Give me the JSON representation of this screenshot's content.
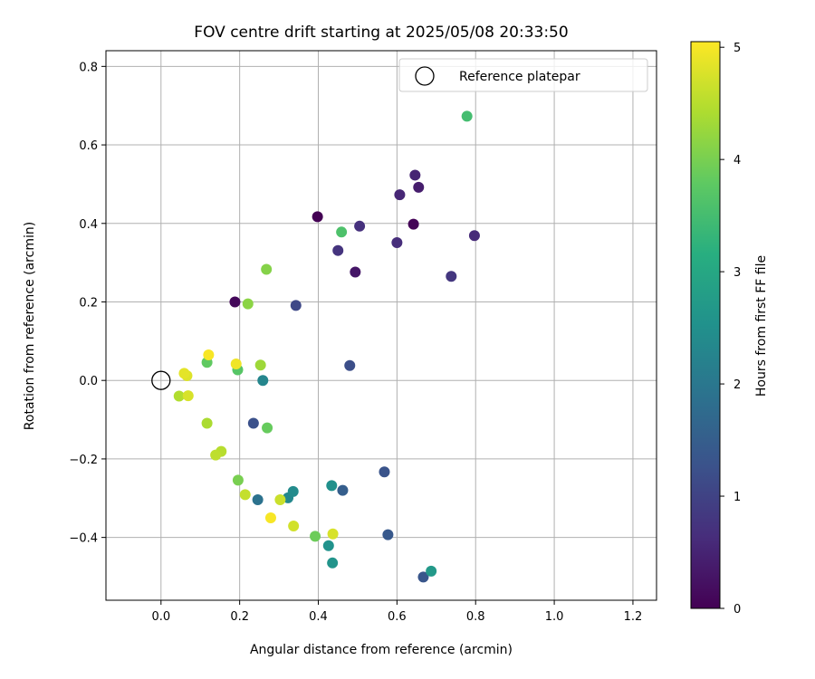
{
  "chart_data": {
    "type": "scatter",
    "title": "FOV centre drift starting at 2025/05/08 20:33:50",
    "xlabel": "Angular distance from reference (arcmin)",
    "ylabel": "Rotation from reference (arcmin)",
    "xlim": [
      -0.14,
      1.26
    ],
    "ylim": [
      -0.56,
      0.84
    ],
    "xticks": [
      0.0,
      0.2,
      0.4,
      0.6,
      0.8,
      1.0,
      1.2
    ],
    "xtick_labels": [
      "0.0",
      "0.2",
      "0.4",
      "0.6",
      "0.8",
      "1.0",
      "1.2"
    ],
    "yticks": [
      -0.4,
      -0.2,
      0.0,
      0.2,
      0.4,
      0.6,
      0.8
    ],
    "ytick_labels": [
      "−0.4",
      "−0.2",
      "0.0",
      "0.2",
      "0.4",
      "0.6",
      "0.8"
    ],
    "grid": true,
    "legend": {
      "position": "top-right",
      "entries": [
        "Reference platepar"
      ]
    },
    "reference_point": {
      "x": 0.0,
      "y": 0.0
    },
    "colorbar": {
      "label": "Hours from first FF file",
      "colormap": "viridis",
      "range": [
        0,
        5.05
      ],
      "ticks": [
        0,
        1,
        2,
        3,
        4,
        5
      ],
      "tick_labels": [
        "0",
        "1",
        "2",
        "3",
        "4",
        "5"
      ]
    },
    "points": [
      {
        "x": 0.398,
        "y": 0.417,
        "c": 0.0
      },
      {
        "x": 0.642,
        "y": 0.398,
        "c": 0.05
      },
      {
        "x": 0.188,
        "y": 0.2,
        "c": 0.1
      },
      {
        "x": 0.494,
        "y": 0.276,
        "c": 0.3
      },
      {
        "x": 0.655,
        "y": 0.492,
        "c": 0.4
      },
      {
        "x": 0.646,
        "y": 0.523,
        "c": 0.5
      },
      {
        "x": 0.607,
        "y": 0.473,
        "c": 0.55
      },
      {
        "x": 0.797,
        "y": 0.369,
        "c": 0.6
      },
      {
        "x": 0.6,
        "y": 0.351,
        "c": 0.65
      },
      {
        "x": 0.505,
        "y": 0.393,
        "c": 0.7
      },
      {
        "x": 0.45,
        "y": 0.331,
        "c": 0.75
      },
      {
        "x": 0.738,
        "y": 0.265,
        "c": 0.8
      },
      {
        "x": 0.343,
        "y": 0.191,
        "c": 1.1
      },
      {
        "x": 0.48,
        "y": 0.038,
        "c": 1.2
      },
      {
        "x": 0.235,
        "y": -0.109,
        "c": 1.25
      },
      {
        "x": 0.568,
        "y": -0.233,
        "c": 1.3
      },
      {
        "x": 0.667,
        "y": -0.501,
        "c": 1.35
      },
      {
        "x": 0.577,
        "y": -0.393,
        "c": 1.4
      },
      {
        "x": 0.462,
        "y": -0.28,
        "c": 1.5
      },
      {
        "x": 0.246,
        "y": -0.304,
        "c": 1.9
      },
      {
        "x": 0.259,
        "y": 0.0,
        "c": 2.3
      },
      {
        "x": 0.323,
        "y": -0.299,
        "c": 2.35
      },
      {
        "x": 0.336,
        "y": -0.283,
        "c": 2.4
      },
      {
        "x": 0.434,
        "y": -0.268,
        "c": 2.5
      },
      {
        "x": 0.426,
        "y": -0.421,
        "c": 2.55
      },
      {
        "x": 0.436,
        "y": -0.465,
        "c": 2.6
      },
      {
        "x": 0.687,
        "y": -0.486,
        "c": 2.7
      },
      {
        "x": 0.778,
        "y": 0.673,
        "c": 3.5
      },
      {
        "x": 0.459,
        "y": 0.378,
        "c": 3.6
      },
      {
        "x": 0.195,
        "y": 0.027,
        "c": 3.7
      },
      {
        "x": 0.117,
        "y": 0.046,
        "c": 3.8
      },
      {
        "x": 0.27,
        "y": -0.121,
        "c": 3.85
      },
      {
        "x": 0.392,
        "y": -0.397,
        "c": 3.9
      },
      {
        "x": 0.196,
        "y": -0.254,
        "c": 4.0
      },
      {
        "x": 0.268,
        "y": 0.283,
        "c": 4.1
      },
      {
        "x": 0.221,
        "y": 0.195,
        "c": 4.15
      },
      {
        "x": 0.253,
        "y": 0.039,
        "c": 4.3
      },
      {
        "x": 0.117,
        "y": -0.109,
        "c": 4.4
      },
      {
        "x": 0.046,
        "y": -0.04,
        "c": 4.45
      },
      {
        "x": 0.153,
        "y": -0.181,
        "c": 4.5
      },
      {
        "x": 0.139,
        "y": -0.19,
        "c": 4.55
      },
      {
        "x": 0.214,
        "y": -0.291,
        "c": 4.6
      },
      {
        "x": 0.303,
        "y": -0.304,
        "c": 4.65
      },
      {
        "x": 0.337,
        "y": -0.371,
        "c": 4.7
      },
      {
        "x": 0.437,
        "y": -0.391,
        "c": 4.75
      },
      {
        "x": 0.069,
        "y": -0.039,
        "c": 4.75
      },
      {
        "x": 0.066,
        "y": 0.012,
        "c": 4.8
      },
      {
        "x": 0.059,
        "y": 0.018,
        "c": 4.85
      },
      {
        "x": 0.191,
        "y": 0.042,
        "c": 4.95
      },
      {
        "x": 0.121,
        "y": 0.065,
        "c": 5.0
      },
      {
        "x": 0.279,
        "y": -0.35,
        "c": 5.0
      }
    ]
  }
}
